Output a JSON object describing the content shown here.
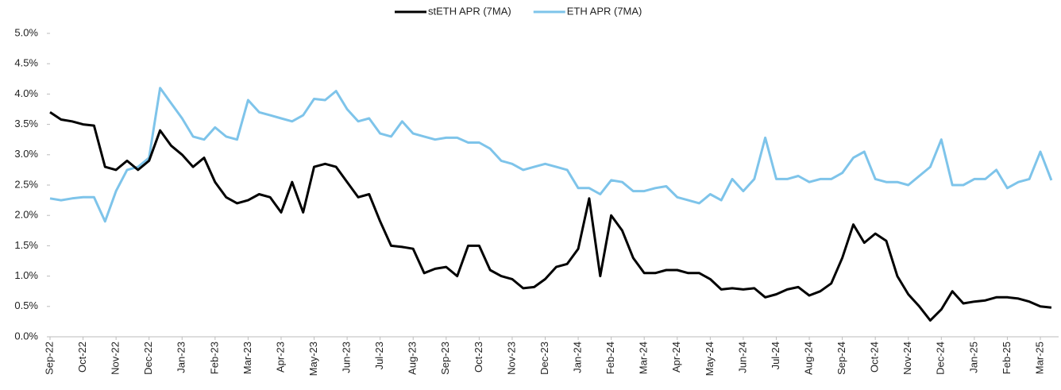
{
  "chart_data": {
    "type": "line",
    "categories": [
      "Sep-22",
      null,
      null,
      "Oct-22",
      null,
      null,
      "Nov-22",
      null,
      null,
      "Dec-22",
      null,
      null,
      "Jan-23",
      null,
      null,
      "Feb-23",
      null,
      null,
      "Mar-23",
      null,
      null,
      "Apr-23",
      null,
      null,
      "May-23",
      null,
      null,
      "Jun-23",
      null,
      null,
      "Jul-23",
      null,
      null,
      "Aug-23",
      null,
      null,
      "Sep-23",
      null,
      null,
      "Oct-23",
      null,
      null,
      "Nov-23",
      null,
      null,
      "Dec-23",
      null,
      null,
      "Jan-24",
      null,
      null,
      "Feb-24",
      null,
      null,
      "Mar-24",
      null,
      null,
      "Apr-24",
      null,
      null,
      "May-24",
      null,
      null,
      "Jun-24",
      null,
      null,
      "Jul-24",
      null,
      null,
      "Aug-24",
      null,
      null,
      "Sep-24",
      null,
      null,
      "Oct-24",
      null,
      null,
      "Nov-24",
      null,
      null,
      "Dec-24",
      null,
      null,
      "Jan-25",
      null,
      null,
      "Feb-25",
      null,
      null,
      "Mar-25",
      null
    ],
    "series": [
      {
        "name": "stETH APR (7MA)",
        "color": "#000000",
        "values": [
          3.7,
          3.58,
          3.55,
          3.5,
          3.48,
          2.8,
          2.75,
          2.9,
          2.75,
          2.9,
          3.4,
          3.15,
          3.0,
          2.8,
          2.95,
          2.55,
          2.3,
          2.2,
          2.25,
          2.35,
          2.3,
          2.05,
          2.55,
          2.05,
          2.8,
          2.85,
          2.8,
          2.55,
          2.3,
          2.35,
          1.9,
          1.5,
          1.48,
          1.45,
          1.05,
          1.12,
          1.15,
          1.0,
          1.5,
          1.5,
          1.1,
          1.0,
          0.95,
          0.8,
          0.82,
          0.95,
          1.15,
          1.2,
          1.45,
          2.28,
          1.0,
          2.0,
          1.75,
          1.3,
          1.05,
          1.05,
          1.1,
          1.1,
          1.05,
          1.05,
          0.95,
          0.78,
          0.8,
          0.78,
          0.8,
          0.65,
          0.7,
          0.78,
          0.82,
          0.68,
          0.75,
          0.88,
          1.3,
          1.85,
          1.55,
          1.7,
          1.58,
          1.0,
          0.7,
          0.5,
          0.27,
          0.45,
          0.75,
          0.55,
          0.58,
          0.6,
          0.65,
          0.65,
          0.63,
          0.58,
          0.5,
          0.48
        ]
      },
      {
        "name": "ETH APR (7MA)",
        "color": "#7ec4ea",
        "values": [
          2.28,
          2.25,
          2.28,
          2.3,
          2.3,
          1.9,
          2.4,
          2.75,
          2.8,
          2.95,
          4.1,
          3.85,
          3.6,
          3.3,
          3.25,
          3.45,
          3.3,
          3.25,
          3.9,
          3.7,
          3.65,
          3.6,
          3.55,
          3.65,
          3.92,
          3.9,
          4.05,
          3.75,
          3.55,
          3.6,
          3.35,
          3.3,
          3.55,
          3.35,
          3.3,
          3.25,
          3.28,
          3.28,
          3.2,
          3.2,
          3.1,
          2.9,
          2.85,
          2.75,
          2.8,
          2.85,
          2.8,
          2.75,
          2.45,
          2.45,
          2.35,
          2.58,
          2.55,
          2.4,
          2.4,
          2.45,
          2.48,
          2.3,
          2.25,
          2.2,
          2.35,
          2.25,
          2.6,
          2.4,
          2.6,
          3.28,
          2.6,
          2.6,
          2.65,
          2.55,
          2.6,
          2.6,
          2.7,
          2.95,
          3.05,
          2.6,
          2.55,
          2.55,
          2.5,
          2.65,
          2.8,
          3.25,
          2.5,
          2.5,
          2.6,
          2.6,
          2.75,
          2.45,
          2.55,
          2.6,
          3.05,
          2.58
        ]
      }
    ],
    "ylim": [
      0,
      5
    ],
    "yticks": [
      {
        "value": 0,
        "label": "0.0%"
      },
      {
        "value": 0.5,
        "label": "0.5%"
      },
      {
        "value": 1,
        "label": "1.0%"
      },
      {
        "value": 1.5,
        "label": "1.5%"
      },
      {
        "value": 2,
        "label": "2.0%"
      },
      {
        "value": 2.5,
        "label": "2.5%"
      },
      {
        "value": 3,
        "label": "3.0%"
      },
      {
        "value": 3.5,
        "label": "3.5%"
      },
      {
        "value": 4,
        "label": "4.0%"
      },
      {
        "value": 4.5,
        "label": "4.5%"
      },
      {
        "value": 5,
        "label": "5.0%"
      }
    ],
    "legend": "top"
  }
}
